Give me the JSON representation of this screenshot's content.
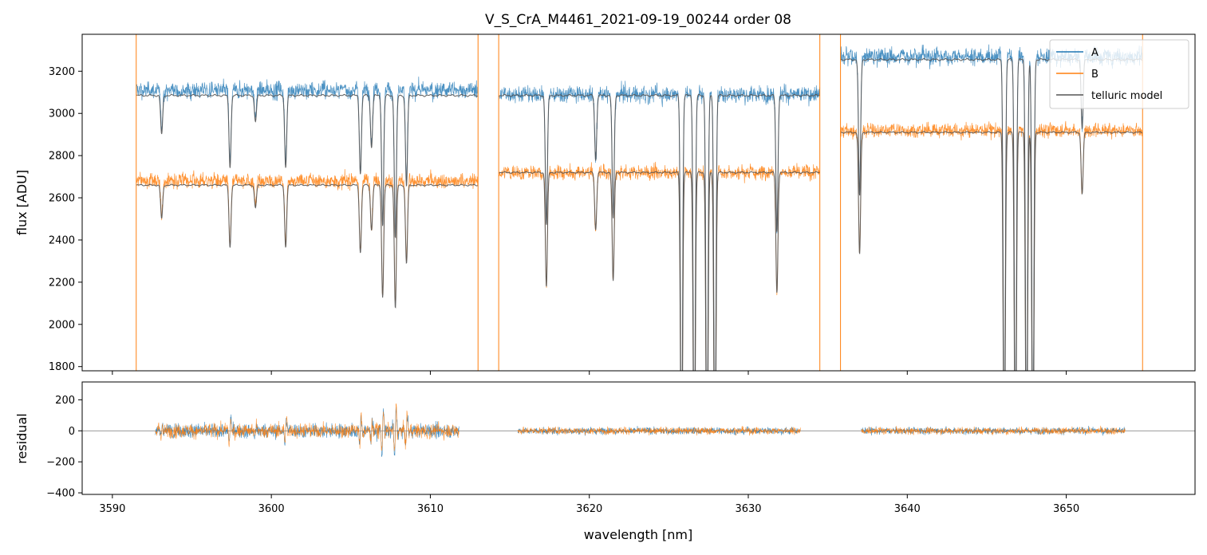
{
  "chart_data": [
    {
      "type": "line",
      "panel": "flux",
      "title": "V_S_CrA_M4461_2021-09-19_00244  order 08",
      "xlabel": "",
      "ylabel": "flux [ADU]",
      "xlim": [
        3588.1,
        3658.1
      ],
      "ylim": [
        1780,
        3375
      ],
      "x_ticks": [
        3590,
        3600,
        3610,
        3620,
        3630,
        3640,
        3650
      ],
      "y_ticks": [
        1800,
        2000,
        2200,
        2400,
        2600,
        2800,
        3000,
        3200
      ],
      "y_tick_labels": [
        "1800",
        "2000",
        "2200",
        "2400",
        "2600",
        "2800",
        "3000",
        "3200"
      ],
      "legend_position": "top-right",
      "colors": {
        "A": "#1f77b4",
        "B": "#ff7f0e",
        "model": "#555555"
      },
      "segments": [
        {
          "x_start": 3591.5,
          "x_end": 3613.0,
          "baseline_A": 3110,
          "baseline_B": 2680,
          "model_A": 3085,
          "model_B": 2660
        },
        {
          "x_start": 3614.3,
          "x_end": 3634.5,
          "baseline_A": 3090,
          "baseline_B": 2720,
          "model_A": 3085,
          "model_B": 2720
        },
        {
          "x_start": 3635.8,
          "x_end": 3654.8,
          "baseline_A": 3270,
          "baseline_B": 2920,
          "model_A": 3255,
          "model_B": 2910
        }
      ],
      "absorption_lines": [
        {
          "x": 3593.1,
          "depth": 0.06
        },
        {
          "x": 3597.4,
          "depth": 0.11
        },
        {
          "x": 3599.0,
          "depth": 0.04
        },
        {
          "x": 3600.9,
          "depth": 0.11
        },
        {
          "x": 3605.6,
          "depth": 0.12
        },
        {
          "x": 3606.3,
          "depth": 0.08
        },
        {
          "x": 3607.0,
          "depth": 0.2
        },
        {
          "x": 3607.8,
          "depth": 0.22
        },
        {
          "x": 3608.5,
          "depth": 0.14
        },
        {
          "x": 3617.3,
          "depth": 0.2
        },
        {
          "x": 3620.4,
          "depth": 0.1
        },
        {
          "x": 3621.5,
          "depth": 0.19
        },
        {
          "x": 3625.8,
          "depth": 0.6
        },
        {
          "x": 3626.6,
          "depth": 0.6
        },
        {
          "x": 3627.4,
          "depth": 0.6
        },
        {
          "x": 3627.9,
          "depth": 0.6
        },
        {
          "x": 3631.8,
          "depth": 0.21
        },
        {
          "x": 3637.0,
          "depth": 0.2
        },
        {
          "x": 3646.1,
          "depth": 0.6
        },
        {
          "x": 3646.8,
          "depth": 0.6
        },
        {
          "x": 3647.5,
          "depth": 0.6
        },
        {
          "x": 3647.9,
          "depth": 0.6
        },
        {
          "x": 3651.0,
          "depth": 0.1
        }
      ],
      "series": [
        {
          "name": "A"
        },
        {
          "name": "B"
        },
        {
          "name": "telluric model"
        }
      ]
    },
    {
      "type": "line",
      "panel": "residual",
      "xlabel": "wavelength [nm]",
      "ylabel": "residual",
      "xlim": [
        3588.1,
        3658.1
      ],
      "ylim": [
        -410,
        315
      ],
      "x_ticks": [
        3590,
        3600,
        3610,
        3620,
        3630,
        3640,
        3650
      ],
      "x_tick_labels": [
        "3590",
        "3600",
        "3610",
        "3620",
        "3630",
        "3640",
        "3650"
      ],
      "y_ticks": [
        -400,
        -200,
        0,
        200
      ],
      "y_tick_labels": [
        "−400",
        "−200",
        "0",
        "200"
      ],
      "segments": [
        {
          "x_start": 3592.7,
          "x_end": 3611.8,
          "noise": 45
        },
        {
          "x_start": 3615.5,
          "x_end": 3633.3,
          "noise": 22
        },
        {
          "x_start": 3637.1,
          "x_end": 3653.7,
          "noise": 22
        }
      ]
    }
  ]
}
